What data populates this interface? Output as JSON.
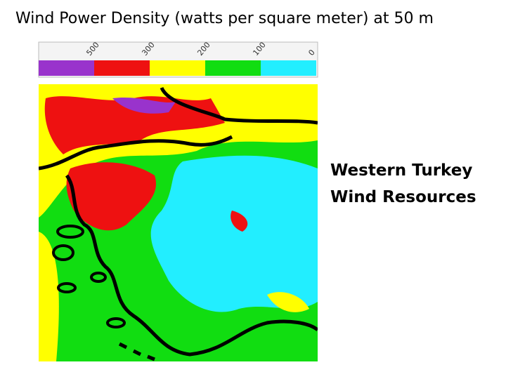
{
  "header": {
    "title": "Wind Power Density (watts per square meter) at 50 m"
  },
  "legend": {
    "labels": [
      "500",
      "300",
      "200",
      "100",
      "0"
    ]
  },
  "side_text": {
    "lines": [
      "Western Turkey",
      "Wind Resources"
    ]
  }
}
